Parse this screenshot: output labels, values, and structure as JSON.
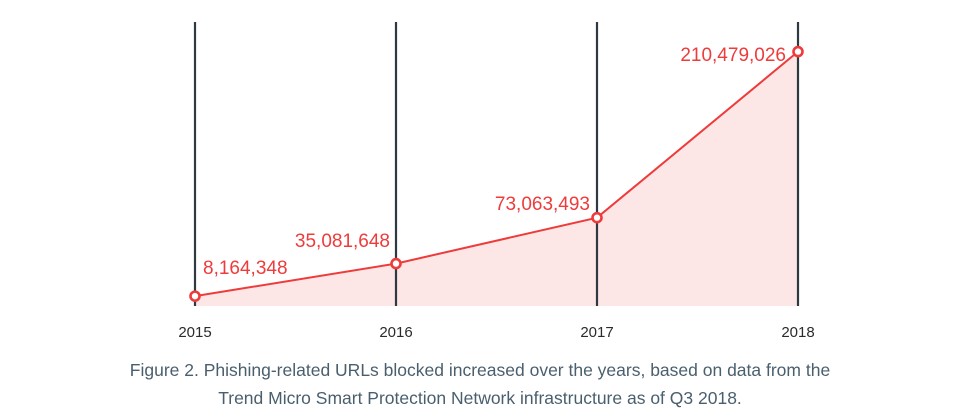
{
  "chart_data": {
    "type": "area",
    "categories": [
      "2015",
      "2016",
      "2017",
      "2018"
    ],
    "values": [
      8164348,
      35081648,
      73063493,
      210479026
    ],
    "data_labels": [
      "8,164,348",
      "35,081,648",
      "73,063,493",
      "210,479,026"
    ],
    "ylim": [
      0,
      230000000
    ],
    "grid": "vertical lines at each category",
    "legend": "none",
    "colors": {
      "line": "#ee3b3b",
      "fill": "#fde6e6",
      "gridline": "#2f3a40",
      "tick_text": "#2b2b2b"
    }
  },
  "caption": {
    "line1": "Figure 2.  Phishing-related URLs blocked increased over the years, based on data from the",
    "line2": "Trend Micro Smart Protection Network infrastructure as of Q3 2018."
  }
}
